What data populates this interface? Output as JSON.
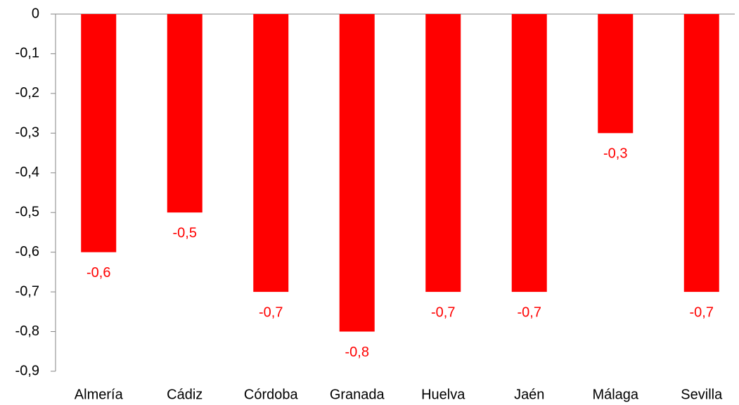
{
  "chart_data": {
    "type": "bar",
    "categories": [
      "Almería",
      "Cádiz",
      "Córdoba",
      "Granada",
      "Huelva",
      "Jaén",
      "Málaga",
      "Sevilla"
    ],
    "values": [
      -0.6,
      -0.5,
      -0.7,
      -0.8,
      -0.7,
      -0.7,
      -0.3,
      -0.7
    ],
    "value_labels": [
      "-0,6",
      "-0,5",
      "-0,7",
      "-0,8",
      "-0,7",
      "-0,7",
      "-0,3",
      "-0,7"
    ],
    "color": "#ff0000",
    "ylim": [
      -0.9,
      0
    ],
    "yticks": [
      0,
      {
        "value": -0.1,
        "label": "-0,1"
      },
      {
        "value": -0.2,
        "label": "-0,2"
      },
      {
        "value": -0.3,
        "label": "-0,3"
      },
      {
        "value": -0.4,
        "label": "-0,4"
      },
      {
        "value": -0.5,
        "label": "-0,5"
      },
      {
        "value": -0.6,
        "label": "-0,6"
      },
      {
        "value": -0.7,
        "label": "-0,7"
      },
      {
        "value": -0.8,
        "label": "-0,8"
      },
      {
        "value": -0.9,
        "label": "-0,9"
      }
    ],
    "grid": false
  }
}
